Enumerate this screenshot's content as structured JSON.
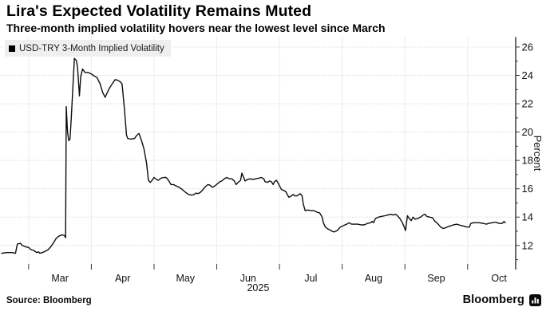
{
  "header": {
    "title": "Lira's Expected Volatility Remains Muted",
    "subtitle": "Three-month implied volatility hovers near the lowest level since March"
  },
  "legend": {
    "label": "USD-TRY 3-Month Implied Volatility",
    "marker": "filled-square",
    "marker_color": "#000000",
    "background": "#efefef"
  },
  "footer": {
    "source_label": "Source: Bloomberg",
    "brand": "Bloomberg",
    "brand_icon": "bar-chart-icon"
  },
  "chart_data": {
    "type": "line",
    "title": "Lira's Expected Volatility Remains Muted",
    "subtitle": "Three-month implied volatility hovers near the lowest level since March",
    "legend_position": "top-left",
    "line_color": "#0c0c0c",
    "grid_color": "#c9c9c9",
    "axis_color": "#3a3a3a",
    "grid": "dotted horizontal and vertical",
    "x_axis": {
      "unit": "months, 0 = start of March 2025; labels centered mid-month",
      "tick_labels": [
        "Mar",
        "Apr",
        "May",
        "Jun",
        "Jul",
        "Aug",
        "Sep",
        "Oct"
      ],
      "year_label": "2025",
      "year_label_position": 3.66,
      "xlim": [
        -0.45,
        7.76
      ]
    },
    "y_axis": {
      "label": "Percent",
      "side": "right",
      "major_ticks": [
        12,
        14,
        16,
        18,
        20,
        22,
        24,
        26
      ],
      "minor_ticks": [
        11,
        13,
        15,
        17,
        19,
        21,
        23,
        25
      ],
      "ylim": [
        10.3,
        26.7
      ]
    },
    "series": [
      {
        "name": "USD-TRY 3-Month Implied Volatility",
        "points": [
          [
            -0.43,
            11.45
          ],
          [
            -0.35,
            11.5
          ],
          [
            -0.27,
            11.5
          ],
          [
            -0.21,
            11.45
          ],
          [
            -0.18,
            12.1
          ],
          [
            -0.13,
            12.15
          ],
          [
            -0.1,
            12.0
          ],
          [
            -0.04,
            11.9
          ],
          [
            0.0,
            11.85
          ],
          [
            0.04,
            11.7
          ],
          [
            0.08,
            11.65
          ],
          [
            0.13,
            11.5
          ],
          [
            0.16,
            11.55
          ],
          [
            0.18,
            11.45
          ],
          [
            0.22,
            11.5
          ],
          [
            0.27,
            11.6
          ],
          [
            0.31,
            11.7
          ],
          [
            0.35,
            11.9
          ],
          [
            0.4,
            12.2
          ],
          [
            0.44,
            12.5
          ],
          [
            0.48,
            12.65
          ],
          [
            0.53,
            12.75
          ],
          [
            0.57,
            12.7
          ],
          [
            0.59,
            12.55
          ],
          [
            0.6,
            21.8
          ],
          [
            0.62,
            20.0
          ],
          [
            0.64,
            19.4
          ],
          [
            0.66,
            19.5
          ],
          [
            0.68,
            21.0
          ],
          [
            0.71,
            23.5
          ],
          [
            0.73,
            25.2
          ],
          [
            0.76,
            25.05
          ],
          [
            0.78,
            24.6
          ],
          [
            0.81,
            22.55
          ],
          [
            0.83,
            23.9
          ],
          [
            0.86,
            24.45
          ],
          [
            0.9,
            24.2
          ],
          [
            0.95,
            24.2
          ],
          [
            1.0,
            24.1
          ],
          [
            1.05,
            23.95
          ],
          [
            1.09,
            23.85
          ],
          [
            1.14,
            23.4
          ],
          [
            1.18,
            22.8
          ],
          [
            1.22,
            22.45
          ],
          [
            1.25,
            22.75
          ],
          [
            1.29,
            23.1
          ],
          [
            1.34,
            23.45
          ],
          [
            1.38,
            23.7
          ],
          [
            1.42,
            23.65
          ],
          [
            1.46,
            23.55
          ],
          [
            1.49,
            23.4
          ],
          [
            1.53,
            21.5
          ],
          [
            1.56,
            19.8
          ],
          [
            1.58,
            19.55
          ],
          [
            1.63,
            19.5
          ],
          [
            1.69,
            19.55
          ],
          [
            1.72,
            19.75
          ],
          [
            1.76,
            19.9
          ],
          [
            1.8,
            19.4
          ],
          [
            1.84,
            18.8
          ],
          [
            1.88,
            17.8
          ],
          [
            1.91,
            16.6
          ],
          [
            1.94,
            16.45
          ],
          [
            1.98,
            16.65
          ],
          [
            2.0,
            16.8
          ],
          [
            2.04,
            16.65
          ],
          [
            2.07,
            16.6
          ],
          [
            2.11,
            16.75
          ],
          [
            2.16,
            16.8
          ],
          [
            2.19,
            16.8
          ],
          [
            2.23,
            16.6
          ],
          [
            2.27,
            16.3
          ],
          [
            2.31,
            16.3
          ],
          [
            2.35,
            16.2
          ],
          [
            2.4,
            16.1
          ],
          [
            2.45,
            15.95
          ],
          [
            2.5,
            15.75
          ],
          [
            2.55,
            15.6
          ],
          [
            2.6,
            15.55
          ],
          [
            2.64,
            15.6
          ],
          [
            2.67,
            15.7
          ],
          [
            2.7,
            15.65
          ],
          [
            2.74,
            15.75
          ],
          [
            2.78,
            15.95
          ],
          [
            2.82,
            16.15
          ],
          [
            2.86,
            16.3
          ],
          [
            2.89,
            16.25
          ],
          [
            2.93,
            16.1
          ],
          [
            2.97,
            16.2
          ],
          [
            3.01,
            16.35
          ],
          [
            3.05,
            16.5
          ],
          [
            3.08,
            16.55
          ],
          [
            3.12,
            16.7
          ],
          [
            3.16,
            16.8
          ],
          [
            3.2,
            16.7
          ],
          [
            3.24,
            16.7
          ],
          [
            3.28,
            16.55
          ],
          [
            3.31,
            16.3
          ],
          [
            3.34,
            16.45
          ],
          [
            3.38,
            16.6
          ],
          [
            3.4,
            17.1
          ],
          [
            3.43,
            16.8
          ],
          [
            3.45,
            16.55
          ],
          [
            3.49,
            16.65
          ],
          [
            3.53,
            16.7
          ],
          [
            3.58,
            16.65
          ],
          [
            3.62,
            16.7
          ],
          [
            3.67,
            16.75
          ],
          [
            3.71,
            16.8
          ],
          [
            3.75,
            16.7
          ],
          [
            3.77,
            16.5
          ],
          [
            3.81,
            16.45
          ],
          [
            3.84,
            16.55
          ],
          [
            3.87,
            16.5
          ],
          [
            3.9,
            16.3
          ],
          [
            3.92,
            16.5
          ],
          [
            3.95,
            16.6
          ],
          [
            3.98,
            16.4
          ],
          [
            4.0,
            16.2
          ],
          [
            4.03,
            15.95
          ],
          [
            4.06,
            15.9
          ],
          [
            4.1,
            15.8
          ],
          [
            4.13,
            15.55
          ],
          [
            4.15,
            15.4
          ],
          [
            4.19,
            15.5
          ],
          [
            4.22,
            15.6
          ],
          [
            4.24,
            15.5
          ],
          [
            4.28,
            15.5
          ],
          [
            4.31,
            15.6
          ],
          [
            4.33,
            15.65
          ],
          [
            4.36,
            15.5
          ],
          [
            4.38,
            14.9
          ],
          [
            4.41,
            14.45
          ],
          [
            4.45,
            14.5
          ],
          [
            4.5,
            14.45
          ],
          [
            4.55,
            14.45
          ],
          [
            4.6,
            14.35
          ],
          [
            4.64,
            14.3
          ],
          [
            4.68,
            14.0
          ],
          [
            4.7,
            13.6
          ],
          [
            4.73,
            13.3
          ],
          [
            4.76,
            13.2
          ],
          [
            4.8,
            13.1
          ],
          [
            4.84,
            13.0
          ],
          [
            4.87,
            12.95
          ],
          [
            4.92,
            13.05
          ],
          [
            4.97,
            13.3
          ],
          [
            5.02,
            13.4
          ],
          [
            5.07,
            13.5
          ],
          [
            5.11,
            13.6
          ],
          [
            5.15,
            13.5
          ],
          [
            5.2,
            13.5
          ],
          [
            5.25,
            13.5
          ],
          [
            5.3,
            13.45
          ],
          [
            5.35,
            13.45
          ],
          [
            5.4,
            13.55
          ],
          [
            5.45,
            13.6
          ],
          [
            5.48,
            13.7
          ],
          [
            5.5,
            13.6
          ],
          [
            5.53,
            13.9
          ],
          [
            5.58,
            14.0
          ],
          [
            5.63,
            14.05
          ],
          [
            5.68,
            14.1
          ],
          [
            5.73,
            14.15
          ],
          [
            5.77,
            14.2
          ],
          [
            5.81,
            14.15
          ],
          [
            5.85,
            14.2
          ],
          [
            5.88,
            14.1
          ],
          [
            5.92,
            13.9
          ],
          [
            5.96,
            13.6
          ],
          [
            5.99,
            13.3
          ],
          [
            6.01,
            13.05
          ],
          [
            6.04,
            14.1
          ],
          [
            6.07,
            13.9
          ],
          [
            6.1,
            13.75
          ],
          [
            6.13,
            14.0
          ],
          [
            6.16,
            13.85
          ],
          [
            6.2,
            13.9
          ],
          [
            6.25,
            14.0
          ],
          [
            6.29,
            14.15
          ],
          [
            6.32,
            14.2
          ],
          [
            6.35,
            14.05
          ],
          [
            6.39,
            14.0
          ],
          [
            6.44,
            13.95
          ],
          [
            6.48,
            13.7
          ],
          [
            6.52,
            13.55
          ],
          [
            6.57,
            13.3
          ],
          [
            6.61,
            13.2
          ],
          [
            6.65,
            13.25
          ],
          [
            6.7,
            13.35
          ],
          [
            6.74,
            13.4
          ],
          [
            6.77,
            13.45
          ],
          [
            6.83,
            13.5
          ],
          [
            6.86,
            13.45
          ],
          [
            6.91,
            13.4
          ],
          [
            6.95,
            13.35
          ],
          [
            6.99,
            13.3
          ],
          [
            7.03,
            13.3
          ],
          [
            7.05,
            13.55
          ],
          [
            7.09,
            13.6
          ],
          [
            7.14,
            13.6
          ],
          [
            7.19,
            13.6
          ],
          [
            7.25,
            13.55
          ],
          [
            7.3,
            13.5
          ],
          [
            7.33,
            13.55
          ],
          [
            7.39,
            13.6
          ],
          [
            7.44,
            13.65
          ],
          [
            7.47,
            13.6
          ],
          [
            7.51,
            13.55
          ],
          [
            7.55,
            13.55
          ],
          [
            7.58,
            13.7
          ],
          [
            7.6,
            13.6
          ]
        ]
      }
    ]
  }
}
